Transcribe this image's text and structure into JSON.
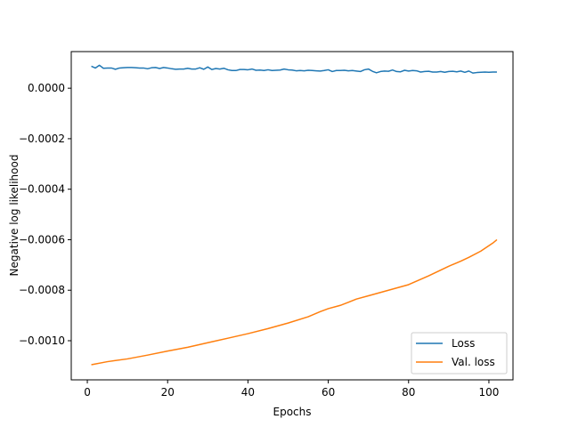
{
  "chart_data": {
    "type": "line",
    "xlabel": "Epochs",
    "ylabel": "Negative log likelihood",
    "xlim": [
      -4,
      106
    ],
    "ylim": [
      -0.001155,
      0.000145
    ],
    "x_ticks": [
      0,
      20,
      40,
      60,
      80,
      100
    ],
    "x_tick_labels": [
      "0",
      "20",
      "40",
      "60",
      "80",
      "100"
    ],
    "y_ticks": [
      -0.001,
      -0.0008,
      -0.0006,
      -0.0004,
      -0.0002,
      0.0
    ],
    "y_tick_labels": [
      "−0.0010",
      "−0.0008",
      "−0.0006",
      "−0.0004",
      "−0.0002",
      "0.0000"
    ],
    "grid": false,
    "legend_position": "lower-right",
    "series": [
      {
        "name": "Loss",
        "color": "#1f77b4",
        "x": [
          1,
          2,
          3,
          4,
          5,
          6,
          7,
          8,
          9,
          10,
          11,
          12,
          13,
          14,
          15,
          16,
          17,
          18,
          19,
          20,
          21,
          22,
          23,
          24,
          25,
          26,
          27,
          28,
          29,
          30,
          31,
          32,
          33,
          34,
          35,
          36,
          37,
          38,
          39,
          40,
          41,
          42,
          43,
          44,
          45,
          46,
          47,
          48,
          49,
          50,
          51,
          52,
          53,
          54,
          55,
          56,
          57,
          58,
          59,
          60,
          61,
          62,
          63,
          64,
          65,
          66,
          67,
          68,
          69,
          70,
          71,
          72,
          73,
          74,
          75,
          76,
          77,
          78,
          79,
          80,
          81,
          82,
          83,
          84,
          85,
          86,
          87,
          88,
          89,
          90,
          91,
          92,
          93,
          94,
          95,
          96,
          97,
          98,
          99,
          100,
          101,
          102
        ],
        "values": [
          8.7e-05,
          8e-05,
          9.1e-05,
          7.9e-05,
          8e-05,
          8e-05,
          7.5e-05,
          8e-05,
          8.1e-05,
          8.2e-05,
          8.2e-05,
          8.1e-05,
          8e-05,
          8e-05,
          7.7e-05,
          8.1e-05,
          8.2e-05,
          7.8e-05,
          8.2e-05,
          8e-05,
          7.7e-05,
          7.5e-05,
          7.6e-05,
          7.6e-05,
          7.9e-05,
          7.6e-05,
          7.6e-05,
          8.1e-05,
          7.5e-05,
          8.4e-05,
          7.4e-05,
          7.8e-05,
          7.6e-05,
          7.9e-05,
          7.3e-05,
          7e-05,
          7e-05,
          7.4e-05,
          7.4e-05,
          7.3e-05,
          7.6e-05,
          7.1e-05,
          7.2e-05,
          7e-05,
          7.3e-05,
          7e-05,
          7.1e-05,
          7.2e-05,
          7.6e-05,
          7.3e-05,
          7.2e-05,
          6.9e-05,
          7e-05,
          6.9e-05,
          7.1e-05,
          7e-05,
          6.9e-05,
          6.8e-05,
          7e-05,
          7.3e-05,
          6.6e-05,
          7e-05,
          7e-05,
          7.1e-05,
          6.9e-05,
          7e-05,
          6.8e-05,
          6.6e-05,
          7.3e-05,
          7.6e-05,
          6.7e-05,
          6.1e-05,
          6.6e-05,
          6.8e-05,
          6.7e-05,
          7.2e-05,
          6.6e-05,
          6.5e-05,
          7.1e-05,
          6.8e-05,
          7e-05,
          6.9e-05,
          6.4e-05,
          6.6e-05,
          6.7e-05,
          6.4e-05,
          6.4e-05,
          6.6e-05,
          6.3e-05,
          6.6e-05,
          6.7e-05,
          6.5e-05,
          6.8e-05,
          6.3e-05,
          6.8e-05,
          6e-05,
          6.2e-05,
          6.3e-05,
          6.4e-05,
          6.3e-05,
          6.4e-05,
          6.4e-05
        ]
      },
      {
        "name": "Val. loss",
        "color": "#ff7f0e",
        "x": [
          1,
          5,
          10,
          15,
          20,
          25,
          30,
          35,
          40,
          45,
          50,
          55,
          58,
          60,
          63,
          65,
          67,
          70,
          75,
          80,
          85,
          90,
          93,
          95,
          98,
          101,
          102
        ],
        "values": [
          -0.001095,
          -0.001083,
          -0.001072,
          -0.001057,
          -0.001041,
          -0.001026,
          -0.001008,
          -0.00099,
          -0.000972,
          -0.000952,
          -0.00093,
          -0.000905,
          -0.000885,
          -0.000873,
          -0.00086,
          -0.000848,
          -0.000835,
          -0.000822,
          -0.0008,
          -0.000778,
          -0.000743,
          -0.000705,
          -0.000685,
          -0.00067,
          -0.000645,
          -0.000613,
          -0.0006
        ]
      }
    ]
  }
}
